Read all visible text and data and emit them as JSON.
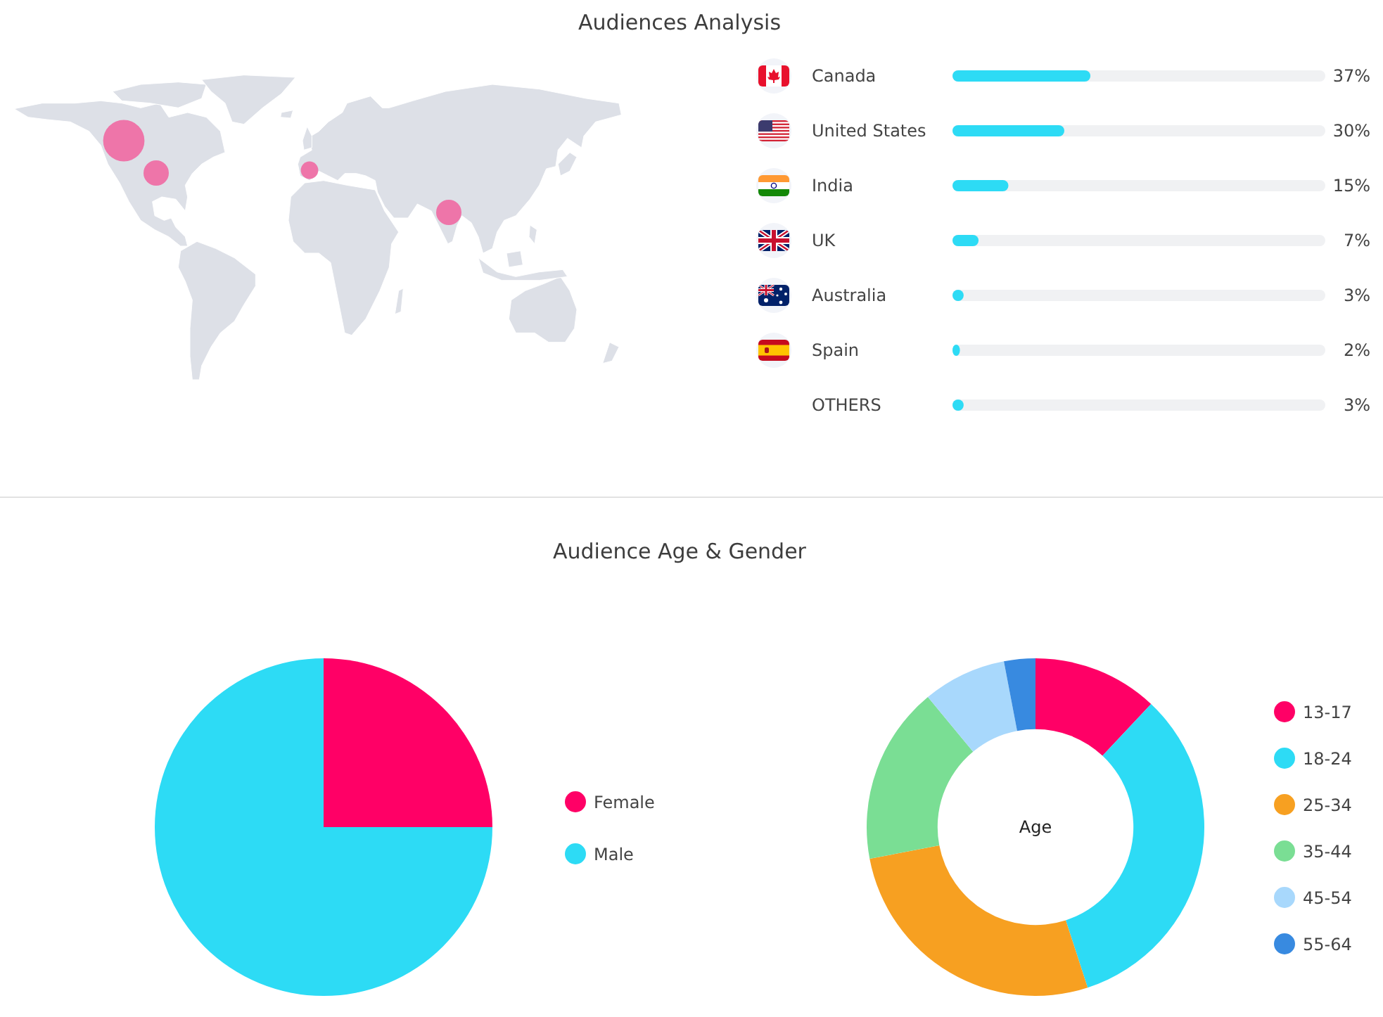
{
  "chart_data": [
    {
      "type": "bar",
      "orientation": "horizontal",
      "title": "Audiences Analysis",
      "categories": [
        "Canada",
        "United States",
        "India",
        "UK",
        "Australia",
        "Spain",
        "OTHERS"
      ],
      "values": [
        37,
        30,
        15,
        7,
        3,
        2,
        3
      ],
      "value_labels": [
        "37%",
        "30%",
        "15%",
        "7%",
        "3%",
        "2%",
        "3%"
      ],
      "color": "#2ddbf5",
      "xlim": [
        0,
        100
      ],
      "tick_labels": "y"
    },
    {
      "type": "pie",
      "title": "Audience Age & Gender",
      "categories": [
        "Female",
        "Male"
      ],
      "values": [
        25,
        75
      ],
      "colors": [
        "#ff0066",
        "#2ddbf5"
      ],
      "legend": "right"
    },
    {
      "type": "donut",
      "categories": [
        "13-17",
        "18-24",
        "25-34",
        "35-44",
        "45-54",
        "55-64"
      ],
      "values": [
        12,
        33,
        27,
        17,
        8,
        3
      ],
      "colors": [
        "#ff0066",
        "#2ddbf5",
        "#f7a021",
        "#7ade94",
        "#a8d8fc",
        "#388ae0"
      ],
      "legend": "right",
      "annotations": [
        "Age"
      ]
    }
  ]
}
